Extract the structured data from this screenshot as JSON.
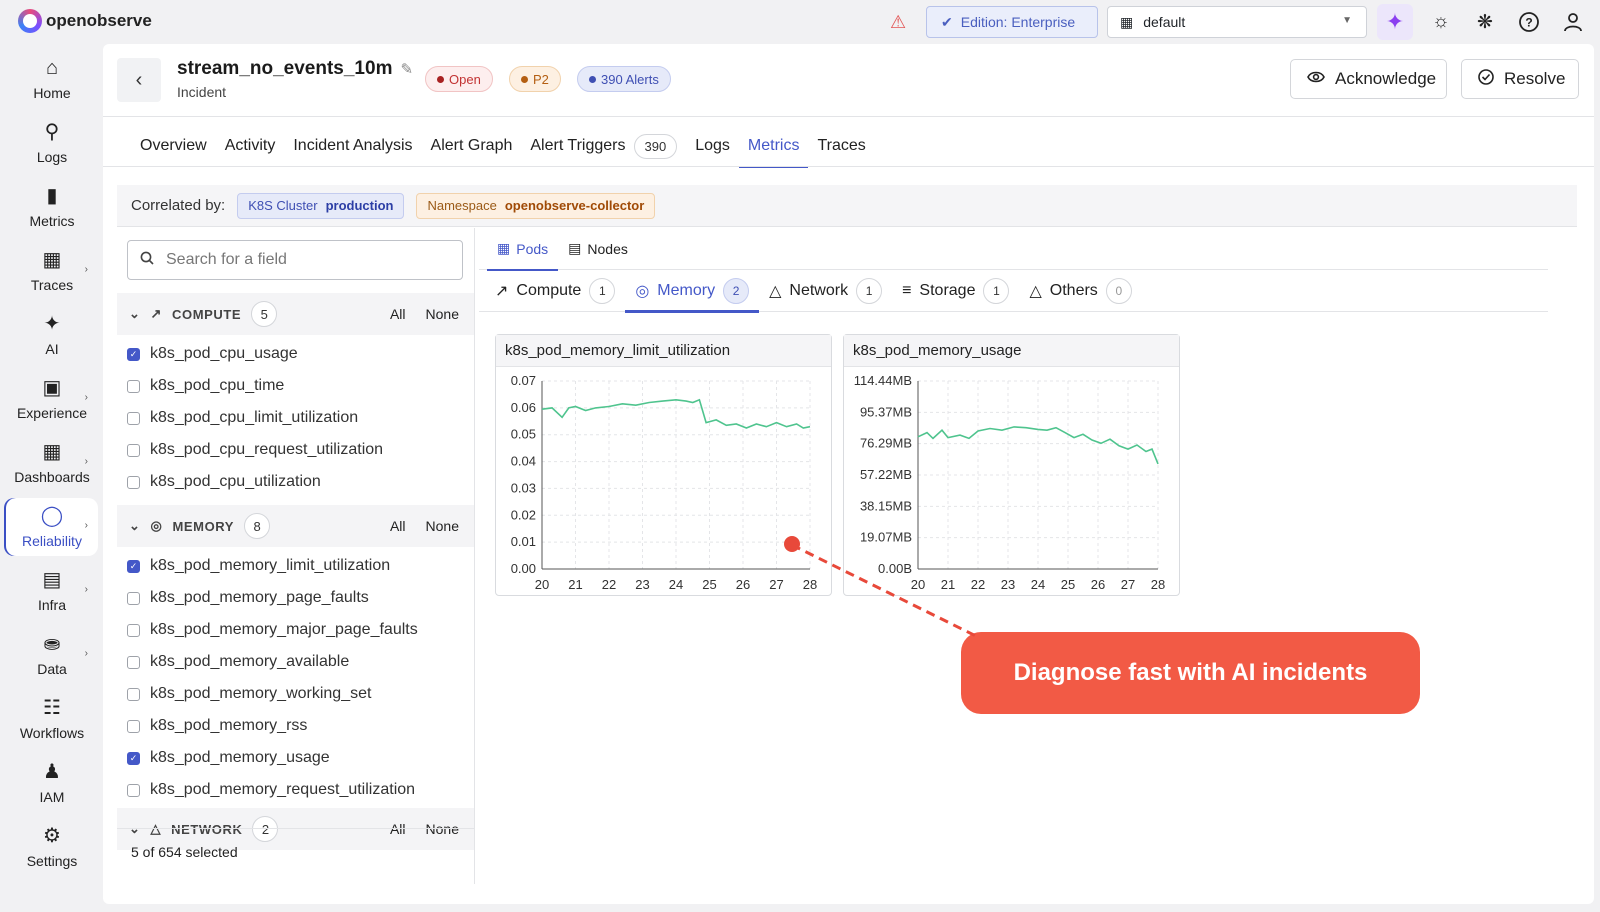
{
  "app": {
    "name": "openobserve"
  },
  "topbar": {
    "edition_label": "Edition: Enterprise",
    "org_value": "default",
    "icons": [
      "warning-icon",
      "sparkle-ai-icon",
      "sun-icon",
      "slack-icon",
      "help-icon",
      "user-icon"
    ]
  },
  "sidebar": {
    "items": [
      {
        "label": "Home",
        "icon": "home-icon"
      },
      {
        "label": "Logs",
        "icon": "search-icon"
      },
      {
        "label": "Metrics",
        "icon": "bar-chart-icon"
      },
      {
        "label": "Traces",
        "icon": "traces-icon"
      },
      {
        "label": "AI",
        "icon": "sparkles-icon"
      },
      {
        "label": "Experience",
        "icon": "devices-icon"
      },
      {
        "label": "Dashboards",
        "icon": "dashboard-icon"
      },
      {
        "label": "Reliability",
        "icon": "shield-icon"
      },
      {
        "label": "Infra",
        "icon": "server-icon"
      },
      {
        "label": "Data",
        "icon": "database-icon"
      },
      {
        "label": "Workflows",
        "icon": "workflow-icon"
      },
      {
        "label": "IAM",
        "icon": "users-icon"
      },
      {
        "label": "Settings",
        "icon": "gear-icon"
      }
    ],
    "active": "Reliability"
  },
  "incident": {
    "title": "stream_no_events_10m",
    "subtitle": "Incident",
    "status": "Open",
    "priority": "P2",
    "alerts": "390 Alerts",
    "acknowledge_label": "Acknowledge",
    "resolve_label": "Resolve"
  },
  "tabs": [
    {
      "label": "Overview"
    },
    {
      "label": "Activity"
    },
    {
      "label": "Incident Analysis"
    },
    {
      "label": "Alert Graph"
    },
    {
      "label": "Alert Triggers",
      "count": "390"
    },
    {
      "label": "Logs"
    },
    {
      "label": "Metrics",
      "active": true
    },
    {
      "label": "Traces"
    }
  ],
  "correlation": {
    "label": "Correlated by:",
    "k8s_key": "K8S Cluster",
    "k8s_value": "production",
    "ns_key": "Namespace",
    "ns_value": "openobserve-collector"
  },
  "field_panel": {
    "search_placeholder": "Search for a field",
    "all_label": "All",
    "none_label": "None",
    "groups": [
      {
        "name": "COMPUTE",
        "count": "5",
        "fields": [
          {
            "name": "k8s_pod_cpu_usage",
            "checked": true
          },
          {
            "name": "k8s_pod_cpu_time",
            "checked": false
          },
          {
            "name": "k8s_pod_cpu_limit_utilization",
            "checked": false
          },
          {
            "name": "k8s_pod_cpu_request_utilization",
            "checked": false
          },
          {
            "name": "k8s_pod_cpu_utilization",
            "checked": false
          }
        ]
      },
      {
        "name": "MEMORY",
        "count": "8",
        "fields": [
          {
            "name": "k8s_pod_memory_limit_utilization",
            "checked": true
          },
          {
            "name": "k8s_pod_memory_page_faults",
            "checked": false
          },
          {
            "name": "k8s_pod_memory_major_page_faults",
            "checked": false
          },
          {
            "name": "k8s_pod_memory_available",
            "checked": false
          },
          {
            "name": "k8s_pod_memory_working_set",
            "checked": false
          },
          {
            "name": "k8s_pod_memory_rss",
            "checked": false
          },
          {
            "name": "k8s_pod_memory_usage",
            "checked": true
          },
          {
            "name": "k8s_pod_memory_request_utilization",
            "checked": false
          }
        ]
      },
      {
        "name": "NETWORK",
        "count": "2",
        "fields": []
      }
    ],
    "selected_text": "5 of 654 selected"
  },
  "sub_tabs": [
    {
      "label": "Pods",
      "active": true
    },
    {
      "label": "Nodes"
    }
  ],
  "category_tabs": [
    {
      "label": "Compute",
      "count": "1"
    },
    {
      "label": "Memory",
      "count": "2",
      "active": true
    },
    {
      "label": "Network",
      "count": "1"
    },
    {
      "label": "Storage",
      "count": "1"
    },
    {
      "label": "Others",
      "count": "0"
    }
  ],
  "chart_data": [
    {
      "type": "line",
      "title": "k8s_pod_memory_limit_utilization",
      "color": "#4fc48e",
      "x_ticks": [
        "20",
        "21",
        "22",
        "23",
        "24",
        "25",
        "26",
        "27",
        "28"
      ],
      "y_ticks": [
        "0.07",
        "0.06",
        "0.05",
        "0.04",
        "0.03",
        "0.02",
        "0.01",
        "0.00"
      ],
      "ylim": [
        0,
        0.07
      ],
      "xlim": [
        20,
        28
      ],
      "x": [
        20,
        20.3,
        20.6,
        20.8,
        21,
        21.3,
        21.6,
        22,
        22.4,
        22.8,
        23.2,
        23.6,
        24,
        24.3,
        24.5,
        24.7,
        24.9,
        25.2,
        25.5,
        25.8,
        26.1,
        26.4,
        26.7,
        27,
        27.3,
        27.6,
        27.8,
        28
      ],
      "y": [
        0.0595,
        0.06,
        0.0565,
        0.06,
        0.0605,
        0.059,
        0.06,
        0.0605,
        0.0615,
        0.061,
        0.062,
        0.0625,
        0.063,
        0.0625,
        0.062,
        0.063,
        0.0545,
        0.0555,
        0.0535,
        0.054,
        0.0525,
        0.054,
        0.053,
        0.0545,
        0.053,
        0.054,
        0.0525,
        0.053
      ]
    },
    {
      "type": "line",
      "title": "k8s_pod_memory_usage",
      "color": "#4fc48e",
      "x_ticks": [
        "20",
        "21",
        "22",
        "23",
        "24",
        "25",
        "26",
        "27",
        "28"
      ],
      "y_ticks": [
        "114.44MB",
        "95.37MB",
        "76.29MB",
        "57.22MB",
        "38.15MB",
        "19.07MB",
        "0.00B"
      ],
      "ylim": [
        0,
        114.44
      ],
      "xlim": [
        20,
        28
      ],
      "x": [
        20,
        20.3,
        20.5,
        20.8,
        21,
        21.4,
        21.7,
        22,
        22.4,
        22.8,
        23.2,
        23.6,
        24,
        24.3,
        24.6,
        24.9,
        25.2,
        25.5,
        25.8,
        26.1,
        26.4,
        26.7,
        27,
        27.3,
        27.6,
        27.8,
        28
      ],
      "y": [
        80.5,
        83.0,
        79.5,
        84.5,
        80.0,
        81.5,
        79.5,
        84.0,
        85.5,
        84.5,
        86.5,
        86.0,
        85.0,
        84.5,
        86.0,
        83.0,
        80.0,
        82.0,
        78.5,
        76.5,
        79.0,
        75.0,
        73.0,
        75.5,
        71.5,
        73.0,
        64.0
      ]
    }
  ],
  "callout": {
    "text": "Diagnose fast with AI incidents"
  }
}
